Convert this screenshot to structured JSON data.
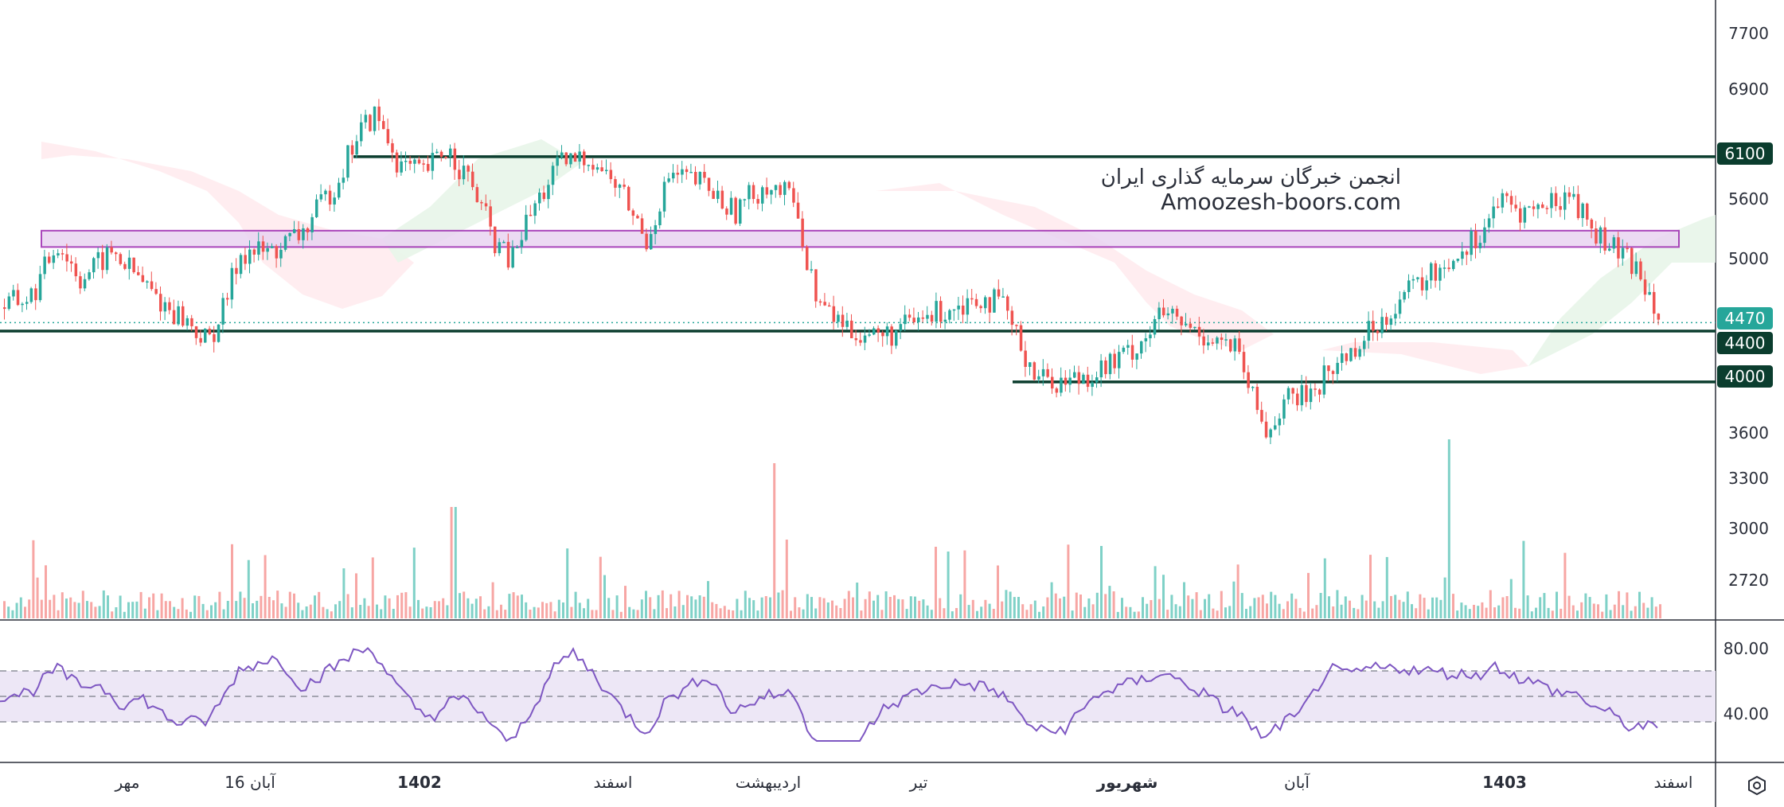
{
  "watermark": {
    "line1": "انجمن خبرگان سرمایه گذاری ایران",
    "line2": "Amoozesh-boors.com"
  },
  "price_axis": {
    "ticks": [
      "7700",
      "6900",
      "5600",
      "5000",
      "3600",
      "3300",
      "3000",
      "2720"
    ],
    "current_price_label": "4470",
    "level_labels": [
      "6100",
      "4400",
      "4000"
    ]
  },
  "rsi_axis": {
    "ticks": [
      "80.00",
      "40.00"
    ]
  },
  "time_axis": {
    "labels": [
      "مهر",
      "16 آبان",
      "1402",
      "اسفند",
      "اردیبهشت",
      "تیر",
      "شهریور",
      "آبان",
      "1403",
      "اسفند"
    ],
    "bold": [
      false,
      false,
      true,
      false,
      false,
      false,
      true,
      false,
      true,
      false
    ]
  },
  "colors": {
    "up": "#26a69a",
    "down": "#ef5350",
    "level_line": "#0b3d2e",
    "zone_fill": "#e9d4f2",
    "zone_border": "#9c27b0",
    "rsi_line": "#7e57c2",
    "rsi_band": "#ede7f6",
    "current_price": "#26a69a"
  },
  "chart_data": {
    "type": "candlestick",
    "y_scale": "log",
    "price_range": [
      2500,
      8000
    ],
    "horizontal_levels": [
      6100,
      4400,
      4000
    ],
    "resistance_zone": [
      5150,
      5310
    ],
    "current_price": 4470,
    "rsi": {
      "range": [
        0,
        100
      ],
      "bands": [
        30,
        50,
        70
      ]
    }
  },
  "icons": {
    "settings": "settings-hexagon-icon"
  }
}
